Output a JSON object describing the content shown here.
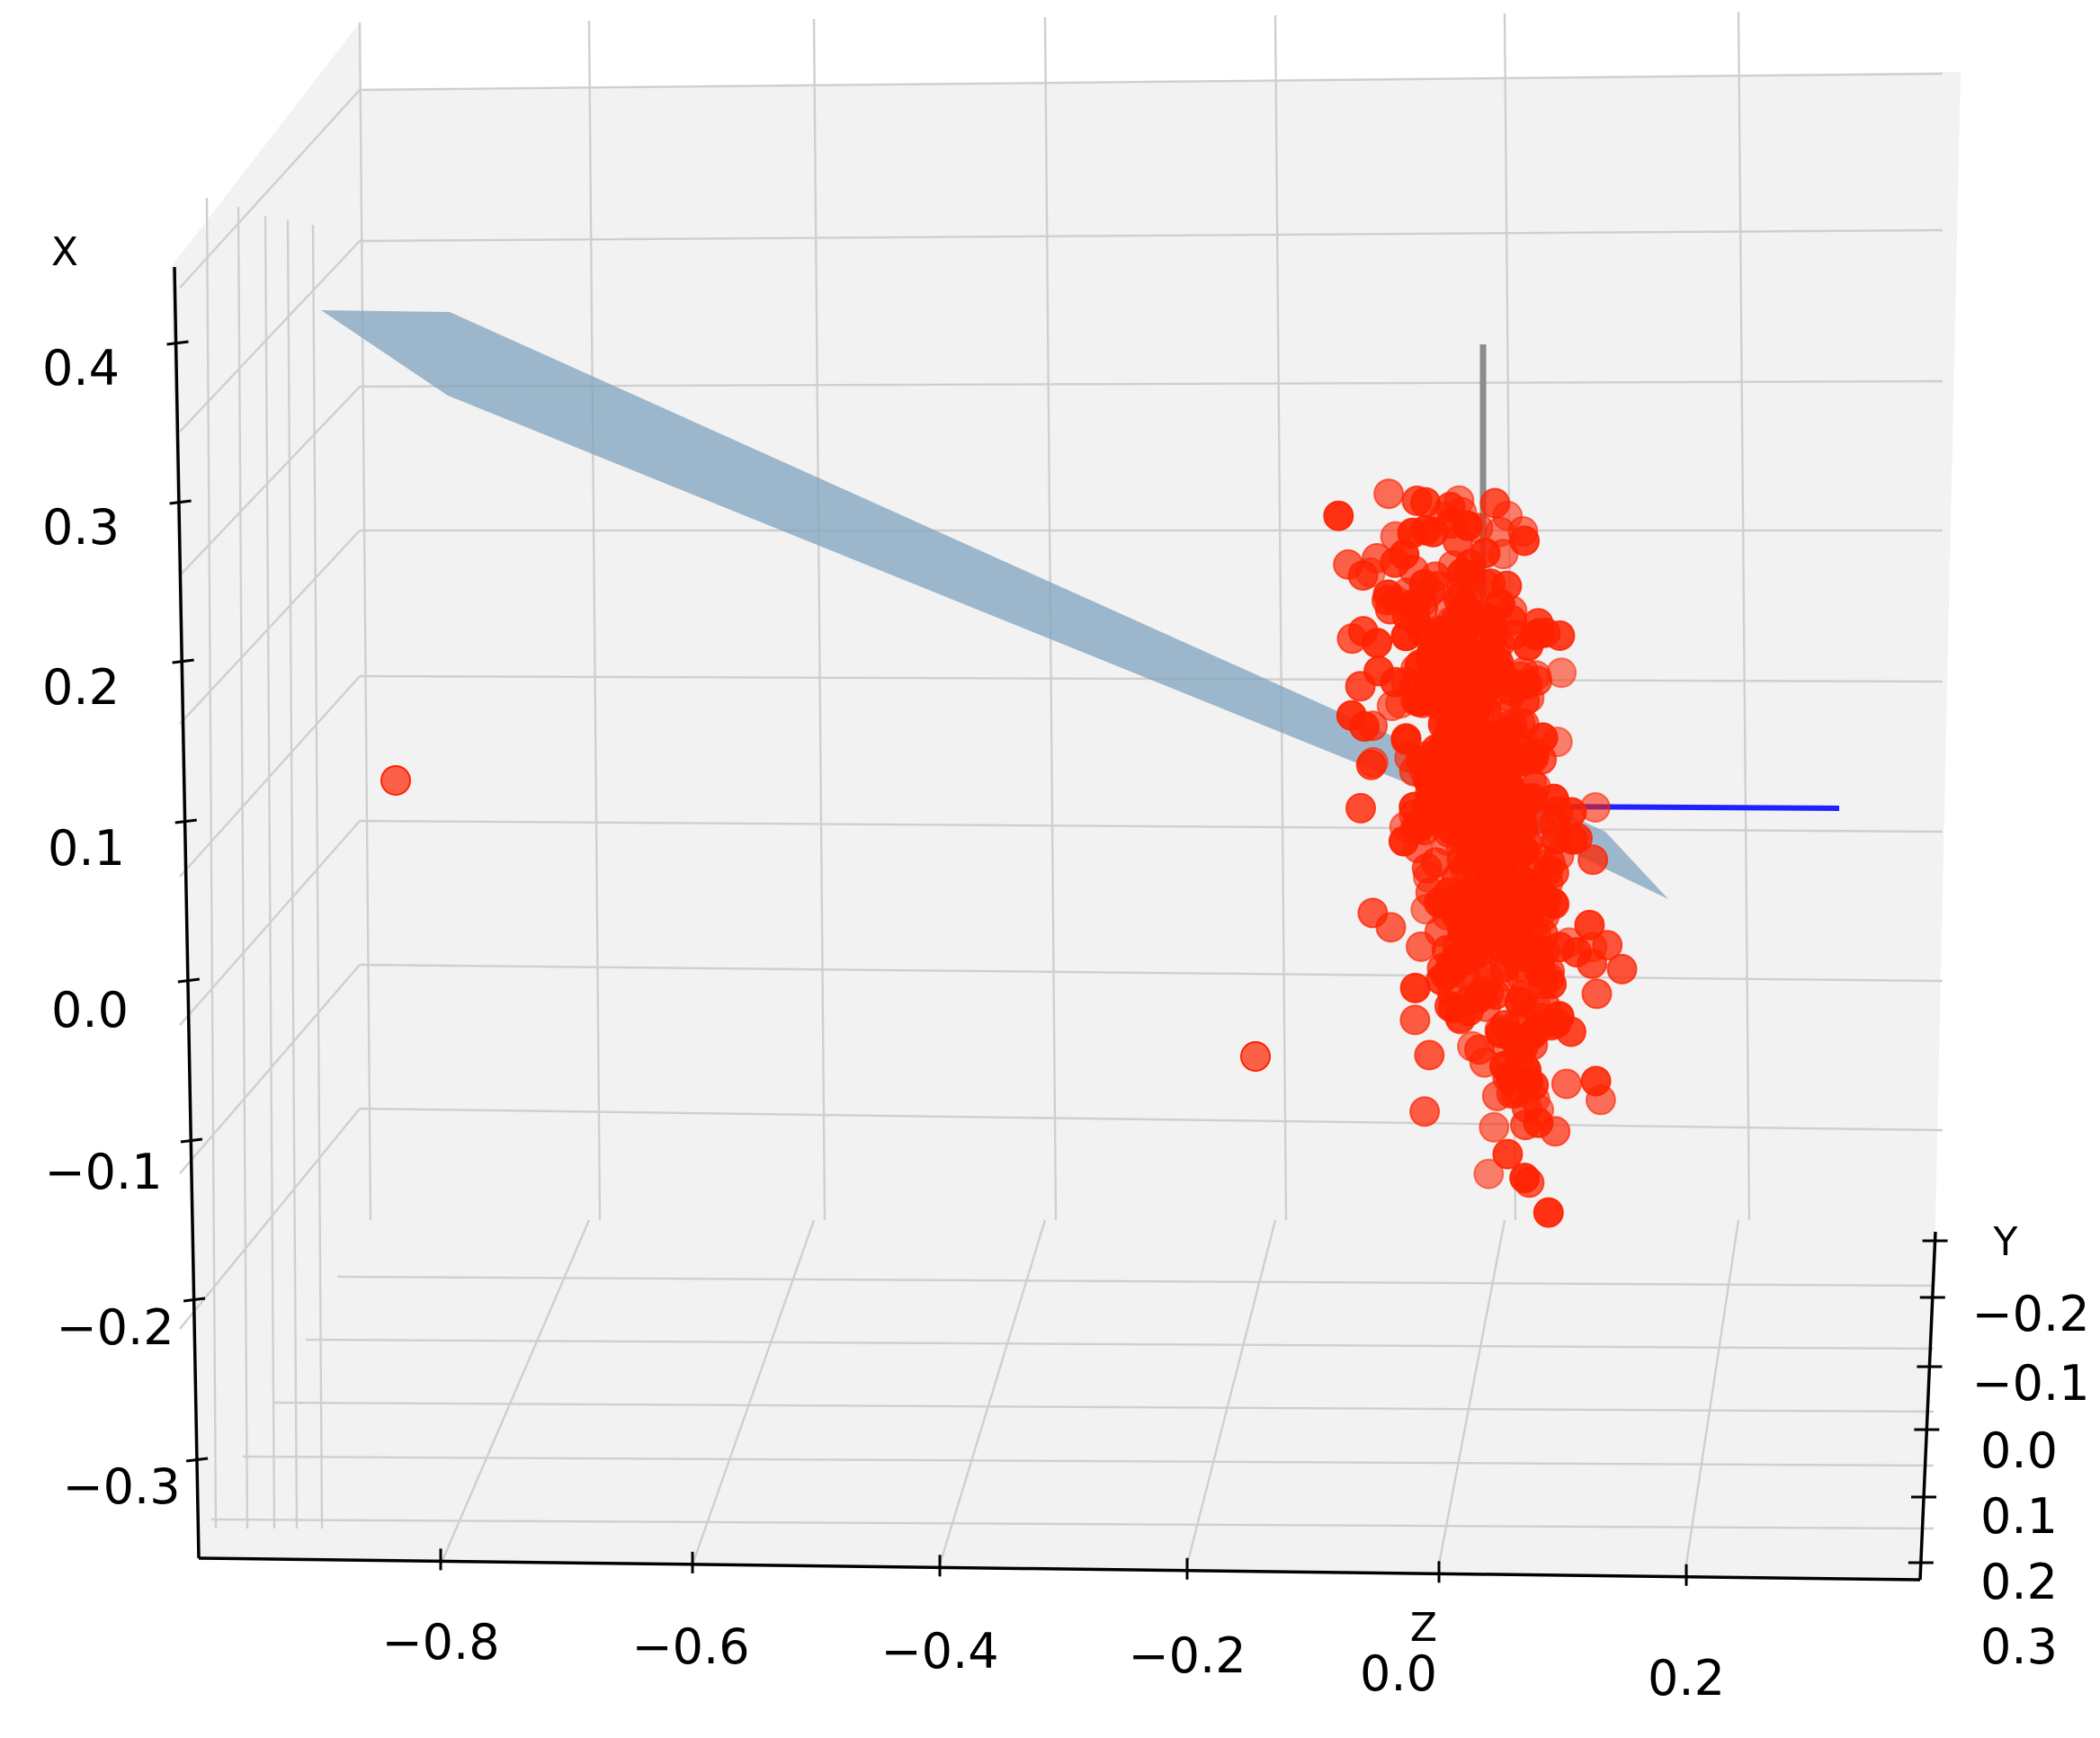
{
  "chart_data": {
    "type": "scatter",
    "projection": "3d",
    "title": "",
    "axes": {
      "x": {
        "label": "X",
        "ticks": [
          "0.4",
          "0.3",
          "0.2",
          "0.1",
          "0.0",
          "−0.1",
          "−0.2",
          "−0.3"
        ]
      },
      "y": {
        "label": "Y",
        "ticks": [
          "−0.2",
          "−0.1",
          "0.0",
          "0.1",
          "0.2",
          "0.3"
        ]
      },
      "z": {
        "label": "Z",
        "ticks": [
          "−0.8",
          "−0.6",
          "−0.4",
          "−0.2",
          "0.0",
          "0.2"
        ]
      }
    },
    "grid": true,
    "series": [
      {
        "kind": "scatter",
        "color": "#ff2200",
        "count": 600,
        "center": {
          "z": 0.05,
          "x": 0.1
        },
        "spread": {
          "z": 0.08,
          "x": 0.12
        }
      },
      {
        "kind": "scatter-outliers",
        "color": "#ff2200",
        "points": [
          {
            "z": -0.88,
            "x": 0.15
          },
          {
            "z": -0.17,
            "x": -0.02
          }
        ]
      },
      {
        "kind": "plane",
        "color": "#7fa3be",
        "opacity": 0.75
      },
      {
        "kind": "vector",
        "color": "#1f22ff",
        "direction": "y"
      },
      {
        "kind": "vector",
        "color": "#8c8c8c",
        "direction": "x"
      }
    ]
  }
}
